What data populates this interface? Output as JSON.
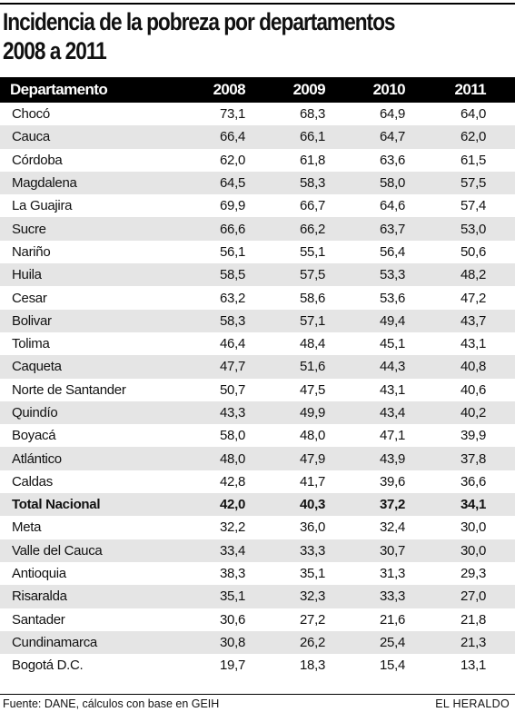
{
  "title": {
    "line1": "Incidencia de la pobreza por departamentos",
    "line2": "2008 a 2011"
  },
  "table": {
    "headers": [
      "Departamento",
      "2008",
      "2009",
      "2010",
      "2011"
    ],
    "rows": [
      [
        "Chocó",
        "73,1",
        "68,3",
        "64,9",
        "64,0"
      ],
      [
        "Cauca",
        "66,4",
        "66,1",
        "64,7",
        "62,0"
      ],
      [
        "Córdoba",
        "62,0",
        "61,8",
        "63,6",
        "61,5"
      ],
      [
        "Magdalena",
        "64,5",
        "58,3",
        "58,0",
        "57,5"
      ],
      [
        "La Guajira",
        "69,9",
        "66,7",
        "64,6",
        "57,4"
      ],
      [
        "Sucre",
        "66,6",
        "66,2",
        "63,7",
        "53,0"
      ],
      [
        "Nariño",
        "56,1",
        "55,1",
        "56,4",
        "50,6"
      ],
      [
        "Huila",
        "58,5",
        "57,5",
        "53,3",
        "48,2"
      ],
      [
        "Cesar",
        "63,2",
        "58,6",
        "53,6",
        "47,2"
      ],
      [
        "Bolivar",
        "58,3",
        "57,1",
        "49,4",
        "43,7"
      ],
      [
        "Tolima",
        "46,4",
        "48,4",
        "45,1",
        "43,1"
      ],
      [
        "Caqueta",
        "47,7",
        "51,6",
        "44,3",
        "40,8"
      ],
      [
        "Norte de Santander",
        "50,7",
        "47,5",
        "43,1",
        "40,6"
      ],
      [
        "Quindío",
        "43,3",
        "49,9",
        "43,4",
        "40,2"
      ],
      [
        "Boyacá",
        "58,0",
        "48,0",
        "47,1",
        "39,9"
      ],
      [
        "Atlántico",
        "48,0",
        "47,9",
        "43,9",
        "37,8"
      ],
      [
        "Caldas",
        "42,8",
        "41,7",
        "39,6",
        "36,6"
      ],
      [
        "Total Nacional",
        "42,0",
        "40,3",
        "37,2",
        "34,1"
      ],
      [
        "Meta",
        "32,2",
        "36,0",
        "32,4",
        "30,0"
      ],
      [
        "Valle del Cauca",
        "33,4",
        "33,3",
        "30,7",
        "30,0"
      ],
      [
        "Antioquia",
        "38,3",
        "35,1",
        "31,3",
        "29,3"
      ],
      [
        "Risaralda",
        "35,1",
        "32,3",
        "33,3",
        "27,0"
      ],
      [
        "Santader",
        "30,6",
        "27,2",
        "21,6",
        "21,8"
      ],
      [
        "Cundinamarca",
        "30,8",
        "26,2",
        "25,4",
        "21,3"
      ],
      [
        "Bogotá D.C.",
        "19,7",
        "18,3",
        "15,4",
        "13,1"
      ]
    ],
    "bold_row": "Total Nacional"
  },
  "footer": {
    "source": "Fuente: DANE, cálculos con base en GEIH",
    "brand": "EL HERALDO"
  },
  "colors": {
    "header_bg": "#000000",
    "header_text": "#ffffff",
    "stripe": "#e5e5e5"
  }
}
